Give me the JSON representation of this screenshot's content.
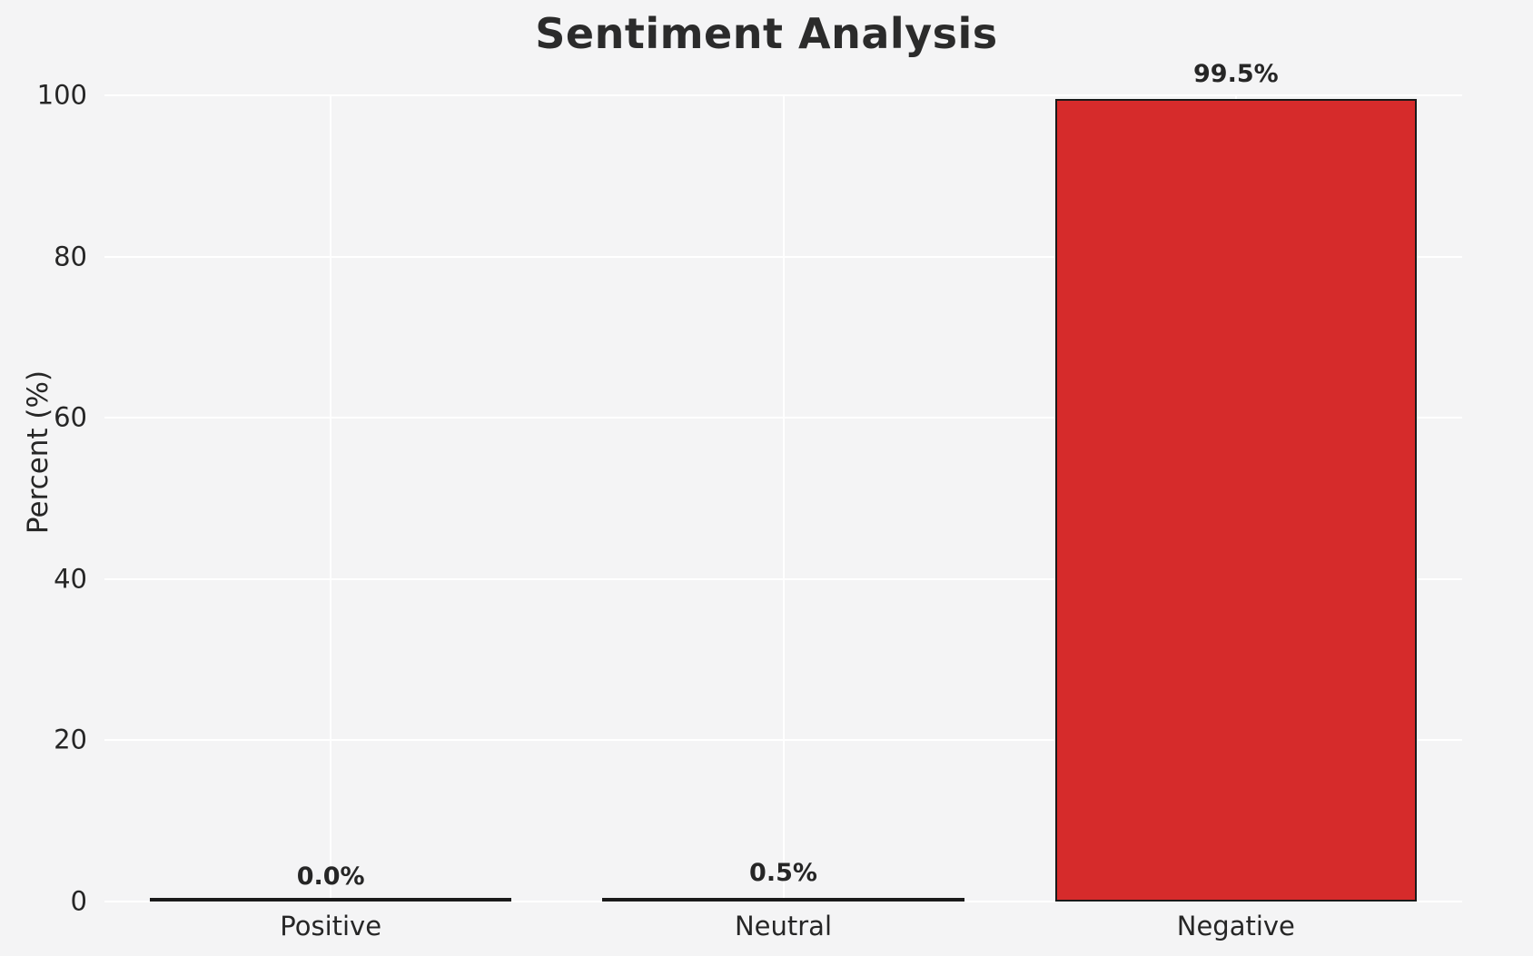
{
  "chart_data": {
    "type": "bar",
    "title": "Sentiment Analysis",
    "xlabel": "",
    "ylabel": "Percent (%)",
    "categories": [
      "Positive",
      "Neutral",
      "Negative"
    ],
    "values": [
      0.0,
      0.5,
      99.5
    ],
    "value_labels": [
      "0.0%",
      "0.5%",
      "99.5%"
    ],
    "colors": [
      "#4cae4c",
      "#efe13c",
      "#d62b2b"
    ],
    "edge_color": "#1a1a1a",
    "ylim": [
      0,
      100
    ],
    "yticks": [
      0,
      20,
      40,
      60,
      80,
      100
    ],
    "grid": true,
    "gridline_color": "#ffffff",
    "background_color": "#f4f4f5",
    "legend": "none"
  }
}
